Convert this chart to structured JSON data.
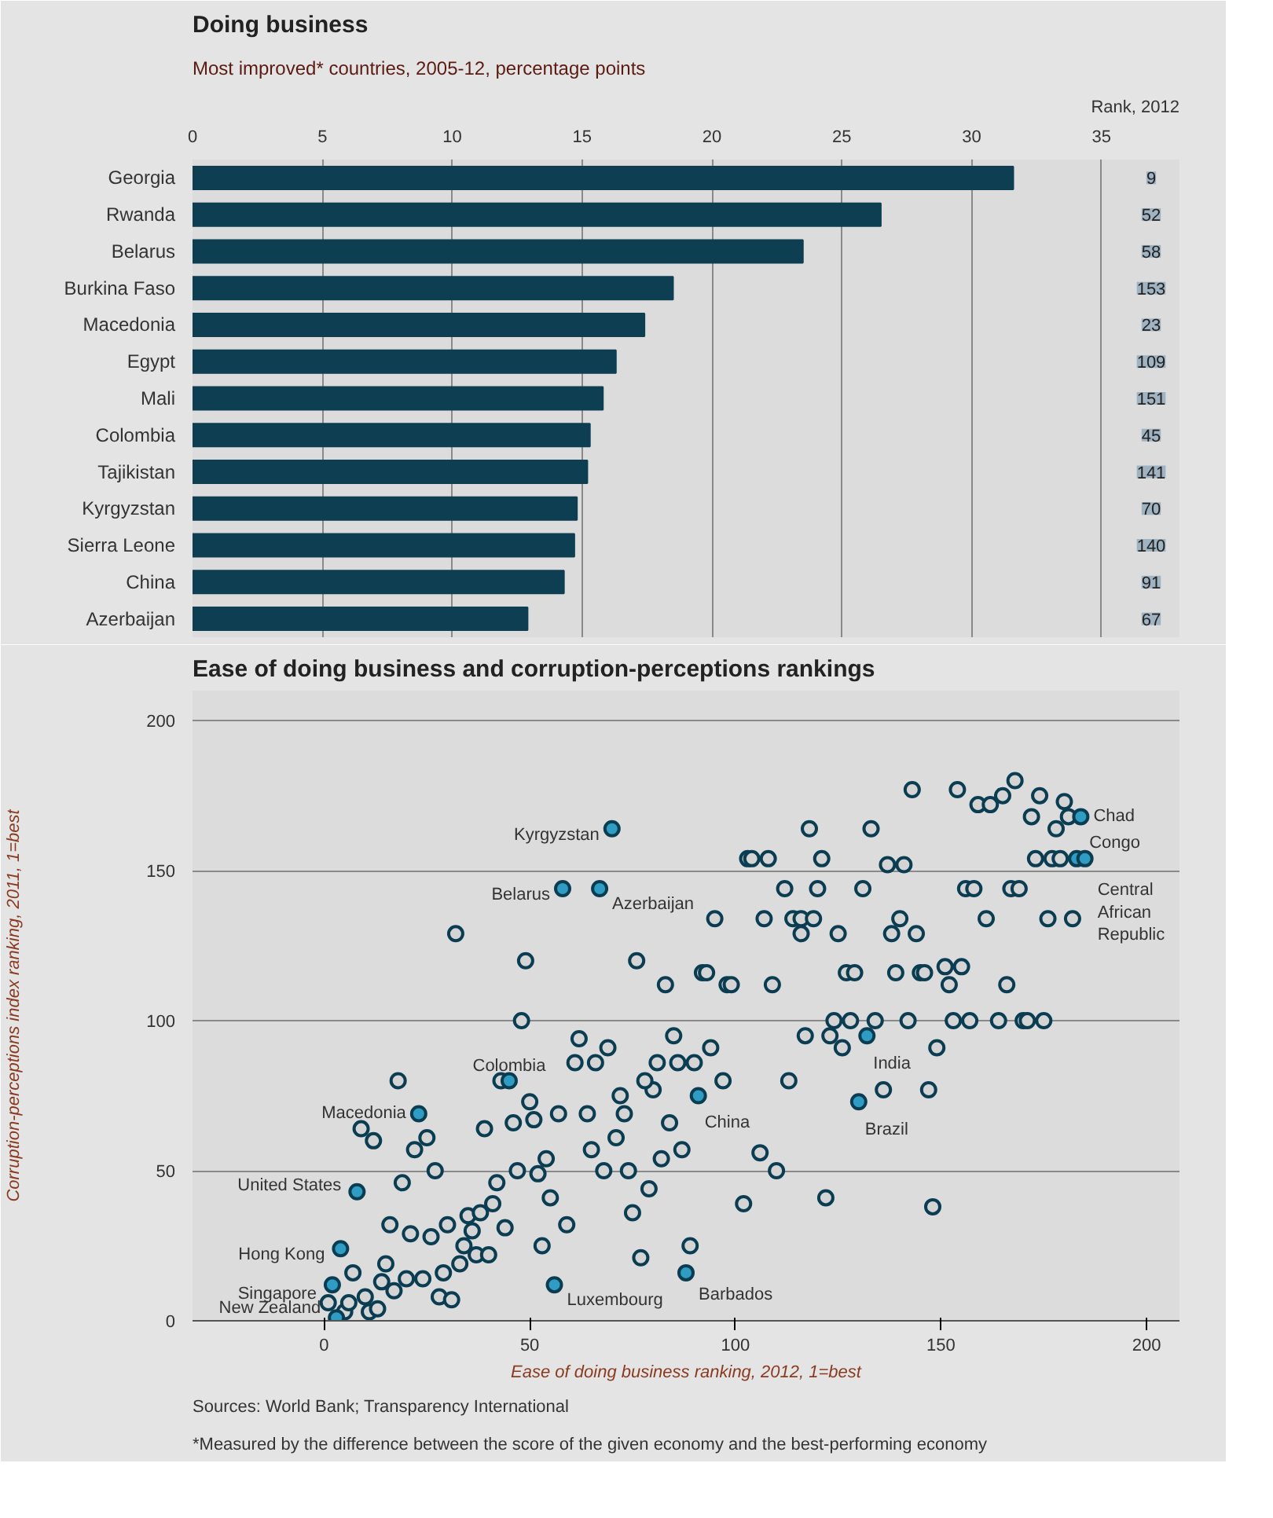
{
  "chart_data": [
    {
      "type": "bar",
      "title": "Doing business",
      "subtitle": "Most improved* countries, 2005-12, percentage points",
      "orientation": "horizontal",
      "categories": [
        "Georgia",
        "Rwanda",
        "Belarus",
        "Burkina Faso",
        "Macedonia",
        "Egypt",
        "Mali",
        "Colombia",
        "Tajikistan",
        "Kyrgyzstan",
        "Sierra Leone",
        "China",
        "Azerbaijan"
      ],
      "values": [
        31.6,
        26.5,
        23.5,
        18.5,
        17.4,
        16.3,
        15.8,
        15.3,
        15.2,
        14.8,
        14.7,
        14.3,
        12.9
      ],
      "color": "#0e3e52",
      "xlim": [
        0,
        38
      ],
      "xticks": [
        0,
        5,
        10,
        15,
        20,
        25,
        30,
        35
      ],
      "grid": "x",
      "annotations": [
        "Rank, 2012",
        {
          "text": "9",
          "y": "Georgia"
        },
        {
          "text": "52",
          "y": "Rwanda"
        },
        {
          "text": "58",
          "y": "Belarus"
        },
        {
          "text": "153",
          "y": "Burkina Faso"
        },
        {
          "text": "23",
          "y": "Macedonia"
        },
        {
          "text": "109",
          "y": "Egypt"
        },
        {
          "text": "151",
          "y": "Mali"
        },
        {
          "text": "45",
          "y": "Colombia"
        },
        {
          "text": "141",
          "y": "Tajikistan"
        },
        {
          "text": "70",
          "y": "Kyrgyzstan"
        },
        {
          "text": "140",
          "y": "Sierra Leone"
        },
        {
          "text": "91",
          "y": "China"
        },
        {
          "text": "67",
          "y": "Azerbaijan"
        }
      ]
    },
    {
      "type": "scatter",
      "title": "Ease of doing business and corruption-perceptions rankings",
      "xlabel": "Ease of doing business ranking, 2012, 1=best",
      "ylabel": "Corruption-perceptions index ranking, 2011, 1=best",
      "xlim": [
        -32,
        208
      ],
      "ylim": [
        0,
        210
      ],
      "xticks": [
        0,
        50,
        100,
        150,
        200
      ],
      "yticks": [
        0,
        50,
        100,
        150,
        200
      ],
      "grid": "y",
      "marker": "circle",
      "series": [
        {
          "color": "#d4d4d4",
          "x": [
            143,
            154,
            159,
            162,
            165,
            168,
            174,
            180,
            172,
            181,
            178,
            118,
            133,
            103,
            104,
            108,
            121,
            137,
            141,
            173,
            177,
            179,
            112,
            120,
            131,
            156,
            158,
            167,
            169,
            95,
            107,
            114,
            116,
            119,
            116,
            125,
            140,
            138,
            144,
            161,
            176,
            182,
            92,
            93,
            98,
            99,
            109,
            127,
            129,
            139,
            145,
            146,
            151,
            155,
            152,
            166,
            124,
            128,
            134,
            142,
            153,
            157,
            164,
            170,
            171,
            175,
            117,
            123,
            126,
            149,
            85,
            94,
            86,
            90,
            97,
            113,
            136,
            147,
            84,
            87,
            106,
            110,
            102,
            122,
            148,
            89,
            18,
            9,
            12,
            22,
            25,
            27,
            19,
            16,
            21,
            26,
            30,
            35,
            38,
            36,
            41,
            44,
            34,
            37,
            40,
            33,
            29,
            24,
            20,
            15,
            14,
            17,
            7,
            1,
            5,
            6,
            10,
            11,
            13,
            28,
            31,
            42,
            47,
            52,
            54,
            55,
            59,
            53,
            39,
            46,
            51,
            50,
            57,
            64,
            65,
            71,
            73,
            72,
            68,
            74,
            79,
            75,
            77,
            82,
            80,
            78,
            61,
            66,
            69,
            62,
            81,
            43,
            32,
            49,
            76,
            83,
            48
          ],
          "values": [
            177,
            177,
            172,
            172,
            175,
            180,
            175,
            173,
            168,
            168,
            164,
            164,
            164,
            154,
            154,
            154,
            154,
            152,
            152,
            154,
            154,
            154,
            144,
            144,
            144,
            144,
            144,
            144,
            144,
            134,
            134,
            134,
            134,
            134,
            129,
            129,
            134,
            129,
            129,
            134,
            134,
            134,
            116,
            116,
            112,
            112,
            112,
            116,
            116,
            116,
            116,
            116,
            118,
            118,
            112,
            112,
            100,
            100,
            100,
            100,
            100,
            100,
            100,
            100,
            100,
            100,
            95,
            95,
            91,
            91,
            95,
            91,
            86,
            86,
            80,
            80,
            77,
            77,
            66,
            57,
            56,
            50,
            39,
            41,
            38,
            25,
            80,
            64,
            60,
            57,
            61,
            50,
            46,
            32,
            29,
            28,
            32,
            35,
            36,
            30,
            39,
            31,
            25,
            22,
            22,
            19,
            16,
            14,
            14,
            19,
            13,
            10,
            16,
            6,
            3,
            6,
            8,
            3,
            4,
            8,
            7,
            46,
            50,
            49,
            54,
            41,
            32,
            25,
            64,
            66,
            67,
            73,
            69,
            69,
            57,
            61,
            69,
            75,
            50,
            50,
            44,
            36,
            21,
            54,
            77,
            80,
            86,
            86,
            91,
            94,
            86,
            80,
            129,
            120,
            120,
            112,
            100
          ]
        },
        {
          "color": "#2e9cc3",
          "x": [
            70,
            58,
            67,
            45,
            23,
            91,
            132,
            130,
            184,
            183,
            185,
            56,
            88,
            4,
            2,
            3,
            8
          ],
          "values": [
            164,
            144,
            144,
            80,
            69,
            75,
            95,
            73,
            168,
            154,
            154,
            12,
            16,
            24,
            12,
            1,
            43
          ]
        }
      ],
      "annotations": [
        {
          "text": "Kyrgyzstan",
          "x": 70,
          "y": 164
        },
        {
          "text": "Belarus",
          "x": 58,
          "y": 144
        },
        {
          "text": "Azerbaijan",
          "x": 67,
          "y": 144
        },
        {
          "text": "Colombia",
          "x": 45,
          "y": 80
        },
        {
          "text": "Macedonia",
          "x": 23,
          "y": 69
        },
        {
          "text": "China",
          "x": 91,
          "y": 75
        },
        {
          "text": "India",
          "x": 132,
          "y": 95
        },
        {
          "text": "Brazil",
          "x": 130,
          "y": 73
        },
        {
          "text": "Chad",
          "x": 184,
          "y": 168
        },
        {
          "text": "Congo",
          "x": 183,
          "y": 154
        },
        {
          "text": "Central African Republic",
          "x": 185,
          "y": 154
        },
        {
          "text": "Luxembourg",
          "x": 56,
          "y": 12
        },
        {
          "text": "Barbados",
          "x": 88,
          "y": 16
        },
        {
          "text": "Hong Kong",
          "x": 4,
          "y": 24
        },
        {
          "text": "Singapore",
          "x": 2,
          "y": 12
        },
        {
          "text": "New Zealand",
          "x": 3,
          "y": 1
        },
        {
          "text": "United States",
          "x": 8,
          "y": 43
        },
        "Sources: World Bank; Transparency International",
        "*Measured by the difference between the score of the given economy and the best-performing economy"
      ]
    }
  ]
}
